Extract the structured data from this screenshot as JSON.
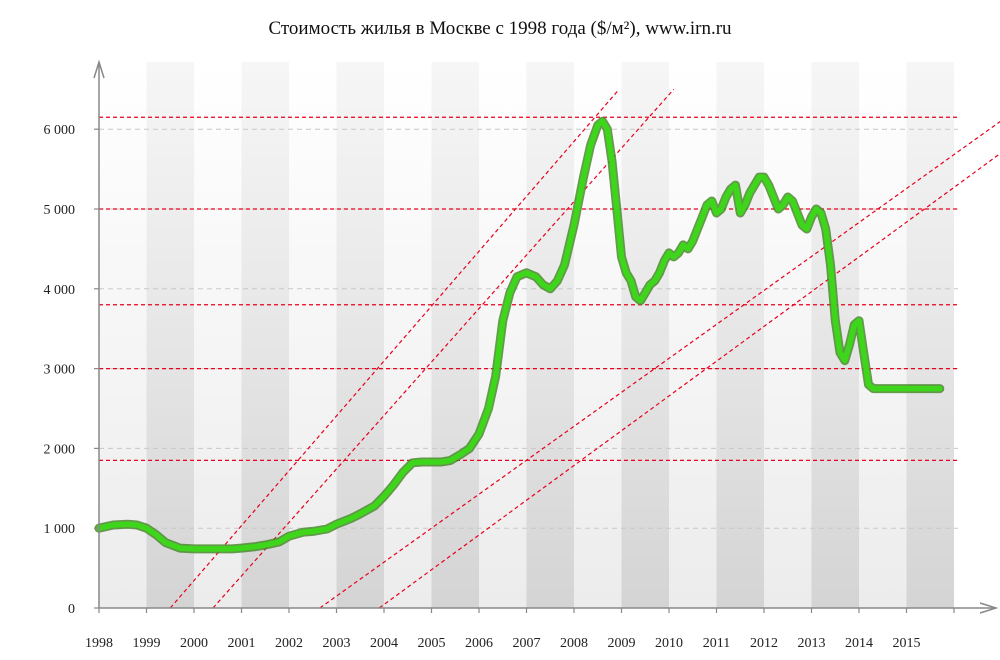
{
  "chart_data": {
    "type": "line",
    "title": "Стоимость жилья в Москве с 1998 года ($/м²), www.irn.ru",
    "xlabel": "",
    "ylabel": "",
    "ylim": [
      0,
      6600
    ],
    "xlim": [
      1998,
      2017.1
    ],
    "year_labels": [
      "1998",
      "1999",
      "2000",
      "2001",
      "2002",
      "2003",
      "2004",
      "2005",
      "2006",
      "2007",
      "2008",
      "2009",
      "2010",
      "2011",
      "2012",
      "2013",
      "2014",
      "2015"
    ],
    "y_ticks": [
      {
        "value": 0,
        "label": "0"
      },
      {
        "value": 1000,
        "label": "1 000"
      },
      {
        "value": 2000,
        "label": "2 000"
      },
      {
        "value": 3000,
        "label": "3 000"
      },
      {
        "value": 4000,
        "label": "4 000"
      },
      {
        "value": 5000,
        "label": "5 000"
      },
      {
        "value": 6000,
        "label": "6 000"
      }
    ],
    "series": [
      {
        "name": "Стоимость жилья ($/м²)",
        "color": "#3ed61a",
        "x": [
          1998.0,
          1998.3,
          1998.6,
          1998.8,
          1999.0,
          1999.2,
          1999.4,
          1999.7,
          2000.0,
          2000.3,
          2000.6,
          2000.8,
          2001.0,
          2001.3,
          2001.5,
          2001.8,
          2002.0,
          2002.3,
          2002.5,
          2002.8,
          2003.0,
          2003.3,
          2003.5,
          2003.8,
          2004.0,
          2004.2,
          2004.4,
          2004.6,
          2004.8,
          2005.0,
          2005.2,
          2005.4,
          2005.6,
          2005.8,
          2006.0,
          2006.2,
          2006.35,
          2006.5,
          2006.65,
          2006.8,
          2007.0,
          2007.2,
          2007.35,
          2007.5,
          2007.65,
          2007.8,
          2008.0,
          2008.2,
          2008.35,
          2008.5,
          2008.6,
          2008.7,
          2008.8,
          2008.9,
          2009.0,
          2009.1,
          2009.2,
          2009.3,
          2009.4,
          2009.5,
          2009.6,
          2009.7,
          2009.8,
          2009.9,
          2010.0,
          2010.1,
          2010.2,
          2010.3,
          2010.4,
          2010.5,
          2010.6,
          2010.7,
          2010.8,
          2010.9,
          2011.0,
          2011.1,
          2011.2,
          2011.3,
          2011.4,
          2011.5,
          2011.6,
          2011.7,
          2011.8,
          2011.9,
          2012.0,
          2012.1,
          2012.2,
          2012.3,
          2012.4,
          2012.5,
          2012.6,
          2012.7,
          2012.8,
          2012.9,
          2013.0,
          2013.1,
          2013.2,
          2013.3,
          2013.4,
          2013.5,
          2013.6,
          2013.7,
          2013.8,
          2013.9,
          2014.0,
          2014.1,
          2014.2,
          2014.3,
          2014.4,
          2014.5,
          2014.6,
          2014.7,
          2014.8,
          2014.9,
          2015.0,
          2015.1,
          2015.2,
          2015.3,
          2015.4,
          2015.5,
          2015.6,
          2015.7
        ],
        "values": [
          1000,
          1040,
          1050,
          1040,
          1000,
          920,
          820,
          750,
          740,
          740,
          740,
          740,
          750,
          770,
          790,
          830,
          900,
          950,
          960,
          990,
          1050,
          1120,
          1180,
          1280,
          1400,
          1540,
          1700,
          1820,
          1830,
          1830,
          1830,
          1850,
          1920,
          2000,
          2180,
          2500,
          2900,
          3600,
          3950,
          4150,
          4200,
          4150,
          4050,
          4000,
          4100,
          4300,
          4800,
          5400,
          5800,
          6050,
          6100,
          6000,
          5600,
          5000,
          4400,
          4200,
          4100,
          3900,
          3850,
          3950,
          4050,
          4100,
          4200,
          4350,
          4450,
          4400,
          4450,
          4550,
          4500,
          4600,
          4750,
          4900,
          5050,
          5100,
          4950,
          5000,
          5150,
          5250,
          5300,
          4950,
          5050,
          5200,
          5300,
          5400,
          5400,
          5300,
          5150,
          5000,
          5050,
          5150,
          5100,
          4950,
          4800,
          4750,
          4900,
          5000,
          4950,
          4750,
          4300,
          3600,
          3200,
          3100,
          3300,
          3550,
          3600,
          3200,
          2800,
          2750,
          2750,
          2750,
          2750,
          2750,
          2750,
          2750,
          2750,
          2750,
          2750,
          2750,
          2750,
          2750,
          2750,
          2750
        ]
      }
    ],
    "horizontal_reference_lines": [
      1850,
      3800,
      3000,
      5000,
      6150
    ],
    "trend_lines": [
      {
        "x": [
          1999.5,
          2008.95
        ],
        "y": [
          0,
          6500
        ]
      },
      {
        "x": [
          2000.4,
          2010.1
        ],
        "y": [
          0,
          6500
        ]
      },
      {
        "x": [
          2002.65,
          2017.1
        ],
        "y": [
          0,
          6150
        ]
      },
      {
        "x": [
          2003.9,
          2017.1
        ],
        "y": [
          0,
          5750
        ]
      }
    ],
    "colors": {
      "line": "#3ed61a",
      "line_shadow": "#4a8a2e",
      "reference": "#e8001c",
      "axis": "#888888",
      "band_dark": "#d8d8d8",
      "band_light": "#f7f7f7",
      "grid": "#c8c8c8"
    }
  }
}
